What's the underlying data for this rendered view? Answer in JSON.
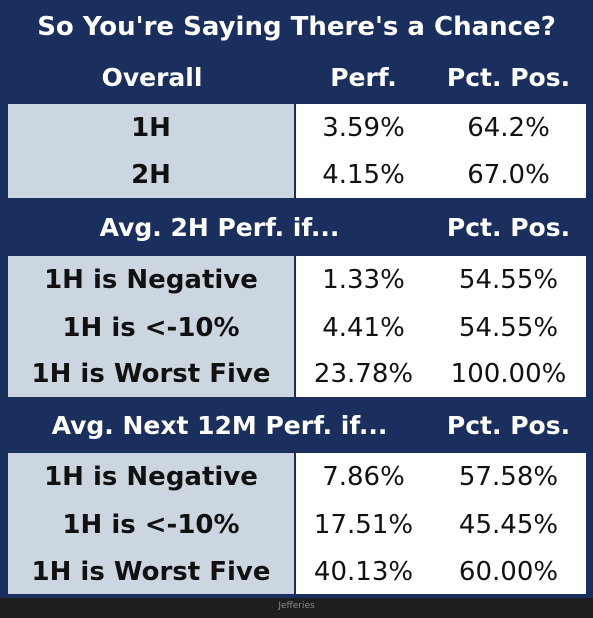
{
  "title": "So You're Saying There's a Chance?",
  "overall": {
    "header": {
      "label": "Overall",
      "perf": "Perf.",
      "pct": "Pct. Pos."
    },
    "rows": [
      {
        "label": "1H",
        "perf": "3.59%",
        "pct": "64.2%"
      },
      {
        "label": "2H",
        "perf": "4.15%",
        "pct": "67.0%"
      }
    ]
  },
  "avg_2h": {
    "header": {
      "label": "Avg. 2H Perf. if...",
      "pct": "Pct. Pos."
    },
    "rows": [
      {
        "label": "1H is Negative",
        "perf": "1.33%",
        "pct": "54.55%"
      },
      {
        "label": "1H is <-10%",
        "perf": "4.41%",
        "pct": "54.55%"
      },
      {
        "label": "1H is Worst Five",
        "perf": "23.78%",
        "pct": "100.00%"
      }
    ]
  },
  "avg_12m": {
    "header": {
      "label": "Avg. Next 12M Perf. if...",
      "pct": "Pct. Pos."
    },
    "rows": [
      {
        "label": "1H is Negative",
        "perf": "7.86%",
        "pct": "57.58%"
      },
      {
        "label": "1H is <-10%",
        "perf": "17.51%",
        "pct": "45.45%"
      },
      {
        "label": "1H is Worst Five",
        "perf": "40.13%",
        "pct": "60.00%"
      }
    ]
  },
  "source": "Jefferies",
  "colors": {
    "header_bg": "#1b2f5e",
    "label_bg": "#ccd6e0",
    "value_bg": "#ffffff",
    "frame": "#1e1e1e"
  }
}
